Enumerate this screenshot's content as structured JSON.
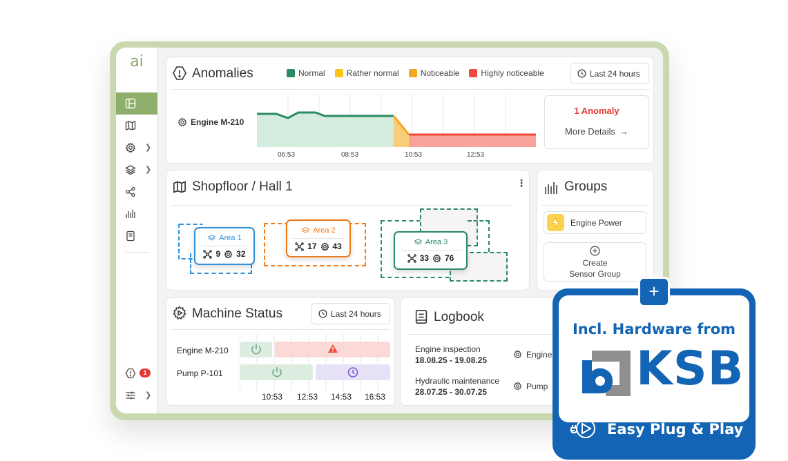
{
  "app": {
    "logo": "ai"
  },
  "sidebar": {
    "alerts_count": "1"
  },
  "anomalies": {
    "title": "Anomalies",
    "legend": [
      {
        "label": "Normal",
        "color": "#2a8a62"
      },
      {
        "label": "Rather normal",
        "color": "#f7c51a"
      },
      {
        "label": "Noticeable",
        "color": "#f5a623"
      },
      {
        "label": "Highly noticeable",
        "color": "#f04a3a"
      }
    ],
    "time_range": "Last 24 hours",
    "engine": "Engine M-210",
    "time_ticks": [
      "06:53",
      "08:53",
      "10:53",
      "12:53"
    ],
    "summary_count": "1 Anomaly",
    "more_details": "More Details"
  },
  "shopfloor": {
    "title": "Shopfloor / Hall 1",
    "areas": [
      {
        "name": "Area 1",
        "sensors": "9",
        "machines": "32",
        "color": "#2f8fd8"
      },
      {
        "name": "Area 2",
        "sensors": "17",
        "machines": "43",
        "color": "#f07a1a"
      },
      {
        "name": "Area 3",
        "sensors": "33",
        "machines": "76",
        "color": "#2a8a62"
      }
    ]
  },
  "groups": {
    "title": "Groups",
    "items": [
      {
        "label": "Engine Power"
      }
    ],
    "create_line1": "Create",
    "create_line2": "Sensor Group"
  },
  "machine_status": {
    "title": "Machine Status",
    "time_range": "Last 24 hours",
    "rows": [
      {
        "name": "Engine M-210"
      },
      {
        "name": "Pump P-101"
      }
    ],
    "time_ticks": [
      "10:53",
      "12:53",
      "14:53",
      "16:53"
    ]
  },
  "logbook": {
    "title": "Logbook",
    "entries": [
      {
        "title": "Engine inspection",
        "dates": "18.08.25 - 19.08.25",
        "asset": "Engine"
      },
      {
        "title": "Hydraulic maintenance",
        "dates": "28.07.25 - 30.07.25",
        "asset": "Pump"
      }
    ]
  },
  "promo": {
    "plus": "+",
    "headline": "Incl. Hardware from",
    "brand": "KSB",
    "footer": "Easy Plug & Play",
    "brand_color": "#1364b4"
  }
}
